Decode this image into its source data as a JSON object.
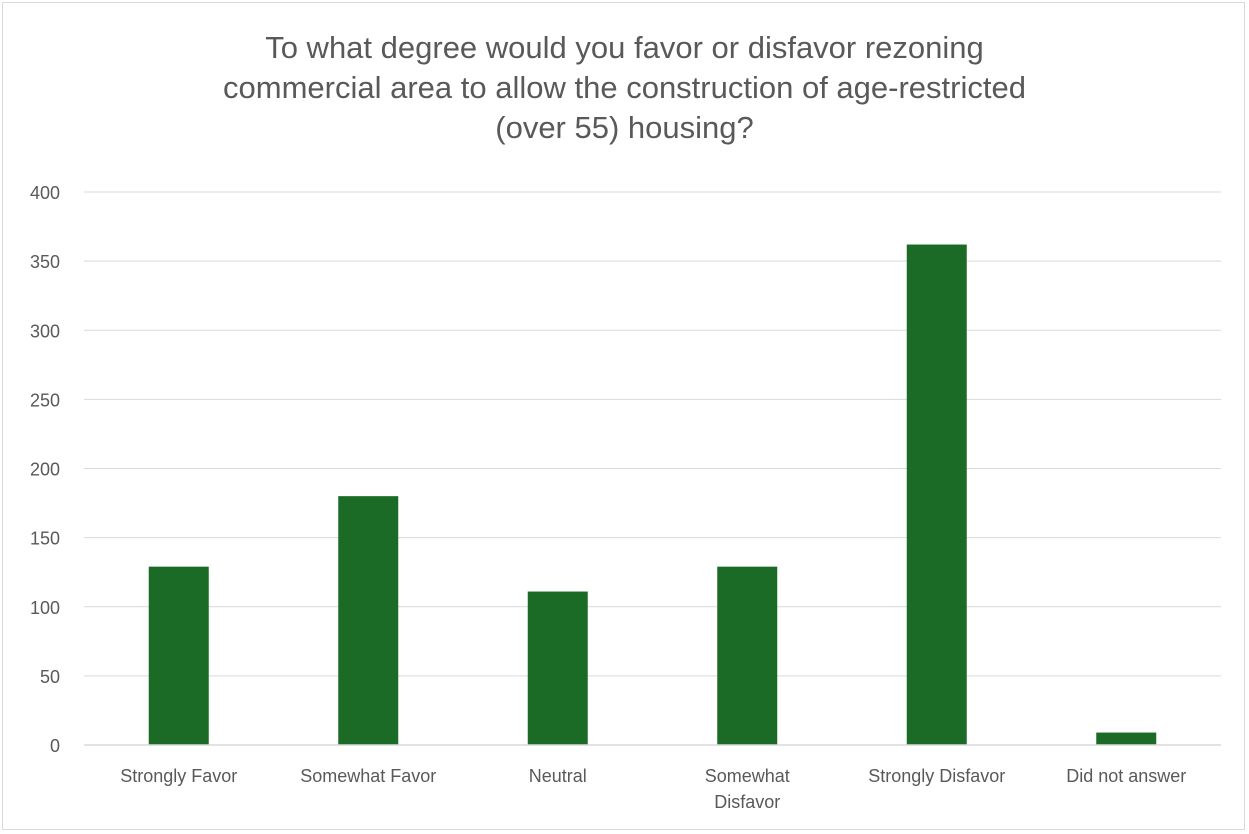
{
  "chart_data": {
    "type": "bar",
    "title_lines": [
      "To what degree would you favor or disfavor rezoning",
      "commercial area to allow the construction of age-restricted",
      "(over 55) housing?"
    ],
    "categories": [
      [
        "Strongly Favor"
      ],
      [
        "Somewhat Favor"
      ],
      [
        "Neutral"
      ],
      [
        "Somewhat",
        "Disfavor"
      ],
      [
        "Strongly Disfavor"
      ],
      [
        "Did not answer"
      ]
    ],
    "values": [
      129,
      180,
      111,
      129,
      362,
      9
    ],
    "y_ticks": [
      0,
      50,
      100,
      150,
      200,
      250,
      300,
      350,
      400
    ],
    "ylim": [
      0,
      400
    ],
    "grid": true,
    "legend": "none",
    "colors": {
      "bar": "#1b6b26",
      "grid": "#d9d9d9",
      "text": "#595959"
    }
  }
}
